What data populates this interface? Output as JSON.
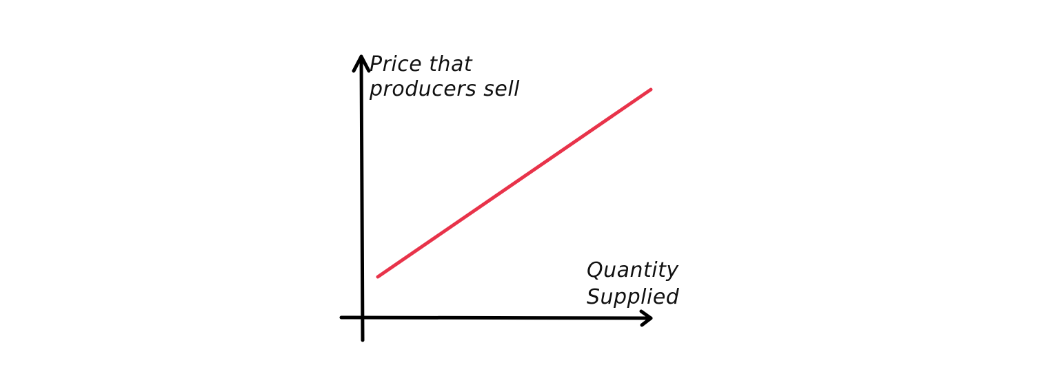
{
  "diagram": {
    "y_axis_label_lines": [
      "Price that",
      "producers sell"
    ],
    "x_axis_label_lines": [
      "Quantity",
      "Supplied"
    ],
    "axis_color": "#000000",
    "curve_color": "#e8334a",
    "background_color": "#ffffff"
  }
}
